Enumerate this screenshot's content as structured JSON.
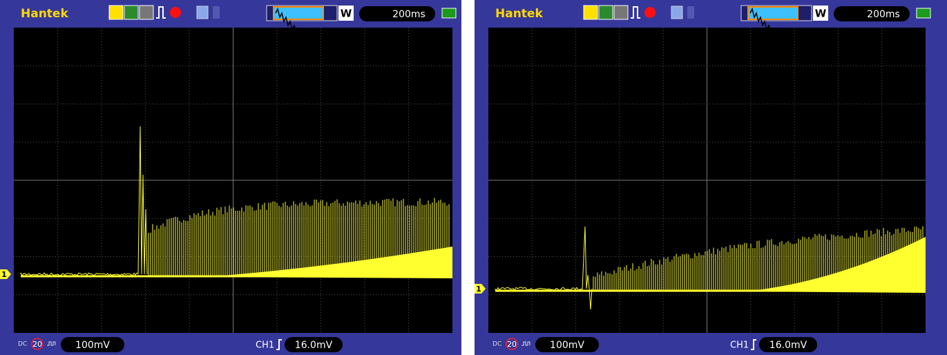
{
  "screens": [
    {
      "brand": "Hantek",
      "mode": "W",
      "timebase": "200ms",
      "marker": "1",
      "coupling": "DC",
      "bandwidth": "20",
      "volts": "100mV",
      "channel": "CH1",
      "trigger": "16.0mV"
    },
    {
      "brand": "Hantek",
      "mode": "W",
      "timebase": "200ms",
      "marker": "1",
      "coupling": "DC",
      "bandwidth": "20",
      "volts": "100mV",
      "channel": "CH1",
      "trigger": "16.0mV"
    }
  ]
}
